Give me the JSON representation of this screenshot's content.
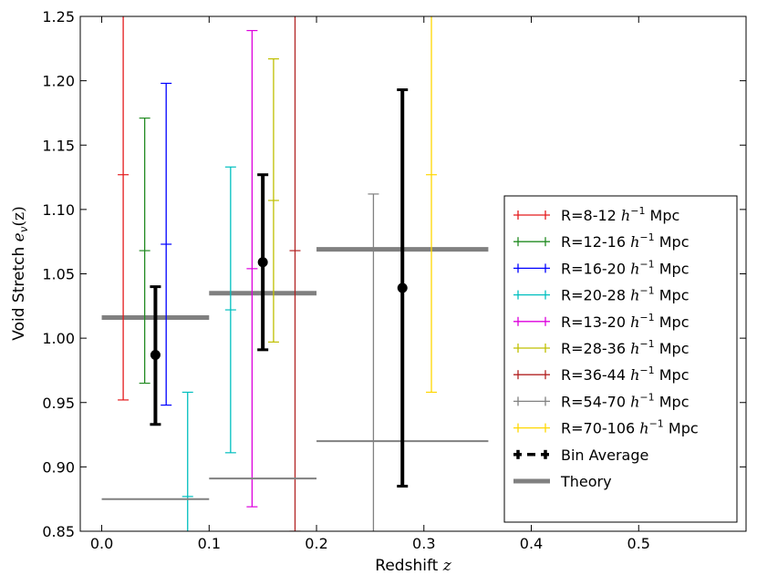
{
  "chart_data": {
    "type": "errorbar",
    "title": "",
    "xlabel": "Redshift",
    "xlabel_var": "z",
    "ylabel": "Void Stretch",
    "ylabel_var": "e",
    "ylabel_sub": "v",
    "ylabel_arg": "(z)",
    "xlim": [
      -0.02,
      0.6
    ],
    "ylim": [
      0.85,
      1.25
    ],
    "xticks": [
      {
        "v": 0.0,
        "label": "0.0"
      },
      {
        "v": 0.1,
        "label": "0.1"
      },
      {
        "v": 0.2,
        "label": "0.2"
      },
      {
        "v": 0.3,
        "label": "0.3"
      },
      {
        "v": 0.4,
        "label": "0.4"
      },
      {
        "v": 0.5,
        "label": "0.5"
      }
    ],
    "yticks": [
      {
        "v": 0.85,
        "label": "0.85"
      },
      {
        "v": 0.9,
        "label": "0.90"
      },
      {
        "v": 0.95,
        "label": "0.95"
      },
      {
        "v": 1.0,
        "label": "1.00"
      },
      {
        "v": 1.05,
        "label": "1.05"
      },
      {
        "v": 1.1,
        "label": "1.10"
      },
      {
        "v": 1.15,
        "label": "1.15"
      },
      {
        "v": 1.2,
        "label": "1.20"
      },
      {
        "v": 1.25,
        "label": "1.25"
      }
    ],
    "series": [
      {
        "name": "R=8-12",
        "color": "#e41a1c",
        "points": [
          {
            "x": 0.02,
            "y": 1.127,
            "lo": 0.952,
            "hi": 1.3
          }
        ]
      },
      {
        "name": "R=12-16",
        "color": "#228B22",
        "points": [
          {
            "x": 0.04,
            "y": 1.068,
            "lo": 0.965,
            "hi": 1.171
          }
        ]
      },
      {
        "name": "R=16-20",
        "color": "#0000ff",
        "points": [
          {
            "x": 0.06,
            "y": 1.073,
            "lo": 0.948,
            "hi": 1.198
          }
        ]
      },
      {
        "name": "R=20-28",
        "color": "#00bfbf",
        "points": [
          {
            "x": 0.08,
            "y": 0.877,
            "lo": 0.8,
            "hi": 0.958
          },
          {
            "x": 0.12,
            "y": 1.022,
            "lo": 0.911,
            "hi": 1.133
          }
        ]
      },
      {
        "name": "R=13-20",
        "color": "#dd00dd",
        "points": [
          {
            "x": 0.14,
            "y": 1.054,
            "lo": 0.869,
            "hi": 1.239
          }
        ]
      },
      {
        "name": "R=28-36",
        "color": "#bfbf00",
        "points": [
          {
            "x": 0.16,
            "y": 1.107,
            "lo": 0.997,
            "hi": 1.217
          }
        ]
      },
      {
        "name": "R=36-44",
        "color": "#b22222",
        "points": [
          {
            "x": 0.18,
            "y": 1.068,
            "lo": 0.85,
            "hi": 1.3
          }
        ]
      },
      {
        "name": "R=54-70",
        "color": "#808080",
        "points": [
          {
            "x": 0.05,
            "y": 0.875,
            "lo": 0.875,
            "hi": 0.875,
            "xerr": 0.05
          },
          {
            "x": 0.15,
            "y": 0.891,
            "lo": 0.891,
            "hi": 0.891,
            "xerr": 0.05
          },
          {
            "x": 0.28,
            "y": 0.92,
            "lo": 0.92,
            "hi": 0.92,
            "xerr": 0.08
          },
          {
            "x": 0.253,
            "y": 0.92,
            "lo": 0.8,
            "hi": 1.112
          }
        ]
      },
      {
        "name": "R=70-106",
        "color": "#ffd700",
        "points": [
          {
            "x": 0.307,
            "y": 1.127,
            "lo": 0.958,
            "hi": 1.3
          }
        ]
      },
      {
        "name": "Bin Average",
        "color": "#000000",
        "points": [
          {
            "x": 0.05,
            "y": 0.987,
            "lo": 0.933,
            "hi": 1.04
          },
          {
            "x": 0.15,
            "y": 1.059,
            "lo": 0.991,
            "hi": 1.127
          },
          {
            "x": 0.28,
            "y": 1.039,
            "lo": 0.885,
            "hi": 1.193
          }
        ]
      }
    ],
    "theory": {
      "name": "Theory",
      "color": "#808080",
      "segments": [
        {
          "x0": 0.0,
          "x1": 0.1,
          "y": 1.016
        },
        {
          "x0": 0.1,
          "x1": 0.2,
          "y": 1.035
        },
        {
          "x0": 0.2,
          "x1": 0.36,
          "y": 1.069
        }
      ]
    },
    "legend": {
      "position": "lower-right",
      "entries": [
        {
          "label": "R=8-12",
          "unit": "h",
          "exp": "−1",
          "suffix": "Mpc",
          "color": "#e41a1c",
          "kind": "errorbar"
        },
        {
          "label": "R=12-16",
          "unit": "h",
          "exp": "−1",
          "suffix": "Mpc",
          "color": "#228B22",
          "kind": "errorbar"
        },
        {
          "label": "R=16-20",
          "unit": "h",
          "exp": "−1",
          "suffix": "Mpc",
          "color": "#0000ff",
          "kind": "errorbar"
        },
        {
          "label": "R=20-28",
          "unit": "h",
          "exp": "−1",
          "suffix": "Mpc",
          "color": "#00bfbf",
          "kind": "errorbar"
        },
        {
          "label": "R=13-20",
          "unit": "h",
          "exp": "−1",
          "suffix": "Mpc",
          "color": "#dd00dd",
          "kind": "errorbar"
        },
        {
          "label": "R=28-36",
          "unit": "h",
          "exp": "−1",
          "suffix": "Mpc",
          "color": "#bfbf00",
          "kind": "errorbar"
        },
        {
          "label": "R=36-44",
          "unit": "h",
          "exp": "−1",
          "suffix": "Mpc",
          "color": "#b22222",
          "kind": "errorbar"
        },
        {
          "label": "R=54-70",
          "unit": "h",
          "exp": "−1",
          "suffix": "Mpc",
          "color": "#808080",
          "kind": "errorbar"
        },
        {
          "label": "R=70-106",
          "unit": "h",
          "exp": "−1",
          "suffix": "Mpc",
          "color": "#ffd700",
          "kind": "errorbar"
        },
        {
          "label": "Bin Average",
          "unit": "",
          "exp": "",
          "suffix": "",
          "color": "#000000",
          "kind": "errorbar-bold"
        },
        {
          "label": "Theory",
          "unit": "",
          "exp": "",
          "suffix": "",
          "color": "#808080",
          "kind": "line"
        }
      ]
    }
  }
}
